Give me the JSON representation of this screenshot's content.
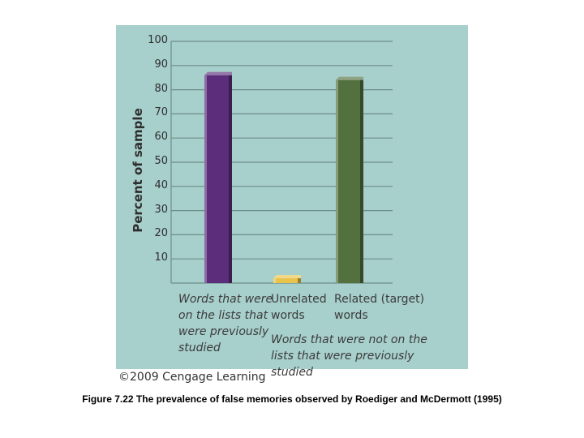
{
  "chart_data": {
    "type": "bar",
    "ylabel": "Percent of sample",
    "ylim": [
      0,
      100
    ],
    "yticks": [
      10,
      20,
      30,
      40,
      50,
      60,
      70,
      80,
      90,
      100
    ],
    "grid": true,
    "categories": [
      "Words that were on the lists that were previously studied",
      "Unrelated words",
      "Related (target) words"
    ],
    "category_lines": [
      [
        "Words that were",
        "on the lists that",
        "were previously",
        "studied"
      ],
      [
        "Unrelated",
        "words"
      ],
      [
        "Related (target)",
        "words"
      ]
    ],
    "values": [
      86,
      2,
      84
    ],
    "bar_colors": [
      "#5b2d7a",
      "#e9c44c",
      "#53703f"
    ],
    "group_label_lines": [
      "Words that were not on the",
      "lists that were previously studied"
    ]
  },
  "colors": {
    "panel_background": "#a7cfcb",
    "gridline": "#6e8e8b"
  },
  "copyright": "©2009 Cengage Learning",
  "caption": "Figure 7.22  The prevalence of false memories observed by Roediger and McDermott (1995)"
}
